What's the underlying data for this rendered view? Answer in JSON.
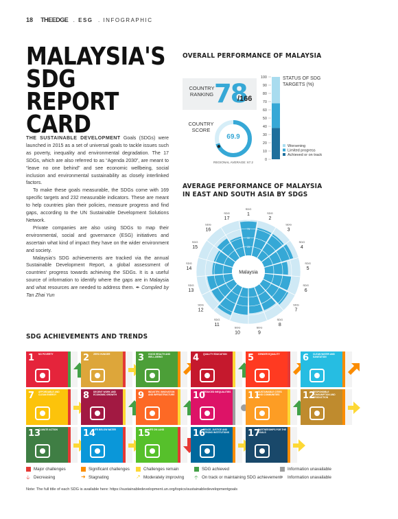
{
  "header": {
    "page_num": "18",
    "brand": "THEEDGE",
    "sep1": ".",
    "section": "ESG",
    "sep2": ".",
    "kind": "INFOGRAPHIC"
  },
  "title": "MALAYSIA'S SDG REPORT CARD",
  "body": {
    "lead": "THE SUSTAINABLE DEVELOPMENT",
    "p1_rest": " Goals (SDGs) were launched in 2015 as a set of universal goals to tackle issues such as poverty, inequality and environmental degradation. The 17 SDGs, which are also referred to as “Agenda 2030”, are meant to “leave no one behind” and see economic wellbeing, social inclusion and environmental sustainability as closely interlinked factors.",
    "p2": "To make these goals measurable, the SDGs come with 169 specific targets and 232 measurable indicators. These are meant to help countries plan their policies, measure progress and find gaps, according to the UN Sustainable Development Solutions Network.",
    "p3": "Private companies are also using SDGs to map their environmental, social and governance (ESG) initiatives and ascertain what kind of impact they have on the wider environment and society.",
    "p4": "Malaysia’s SDG achievements are tracked via the annual Sustainable Development Report, a global assessment of countries’ progress towards achieving the SDGs. It is a useful source of information to identify where the gaps are in Malaysia and what resources are needed to address them.",
    "credit": "Compiled by Tan Zhai Yun"
  },
  "overall": {
    "heading": "OVERALL PERFORMANCE OF MALAYSIA",
    "ranking_label": "COUNTRY RANKING",
    "ranking": "78",
    "ranking_total": "/166",
    "score_label": "COUNTRY SCORE",
    "score": "69.9",
    "score_value": 69.9,
    "regional_avg": "REGIONAL AVERAGE: 67.2"
  },
  "chart_data": [
    {
      "type": "bar",
      "title": "STATUS OF SDG TARGETS (%)",
      "ylim": [
        0,
        100
      ],
      "yticks": [
        "100",
        "90",
        "80",
        "70",
        "60",
        "50",
        "40",
        "30",
        "20",
        "10",
        "0"
      ],
      "stacked": true,
      "series": [
        {
          "name": "Achieved or on track",
          "value": 38,
          "color": "#1e6f9c"
        },
        {
          "name": "Limited progress",
          "value": 30,
          "color": "#36a8d6"
        },
        {
          "name": "Worsening",
          "value": 32,
          "color": "#a9dcef"
        }
      ]
    },
    {
      "type": "bar",
      "polar": true,
      "title": "AVERAGE PERFORMANCE OF MALAYSIA IN EAST AND SOUTH ASIA BY SDGS",
      "center_label": "Malaysia",
      "rlim": [
        0,
        100
      ],
      "rticks": [
        "25",
        "50",
        "75",
        "100"
      ],
      "categories": [
        "SDG 1",
        "SDG 2",
        "SDG 3",
        "SDG 4",
        "SDG 5",
        "SDG 6",
        "SDG 7",
        "SDG 8",
        "SDG 9",
        "SDG 10",
        "SDG 11",
        "SDG 12",
        "SDG 13",
        "SDG 14",
        "SDG 15",
        "SDG 16",
        "SDG 17"
      ],
      "category_nums": [
        "1",
        "2",
        "3",
        "4",
        "5",
        "6",
        "7",
        "8",
        "9",
        "10",
        "11",
        "12",
        "13",
        "14",
        "15",
        "16",
        "17"
      ],
      "values": [
        95,
        80,
        80,
        85,
        65,
        75,
        80,
        70,
        70,
        75,
        85,
        70,
        70,
        55,
        55,
        65,
        55
      ]
    }
  ],
  "radar_heading": "AVERAGE PERFORMANCE OF MALAYSIA IN EAST AND SOUTH ASIA BY SDGS",
  "achievements": {
    "heading": "SDG ACHIEVEMENTS AND TRENDS",
    "tiles": [
      {
        "num": "1",
        "label": "NO POVERTY",
        "color": "#e5243b",
        "status": "#43a047",
        "trend": "up-green"
      },
      {
        "num": "2",
        "label": "ZERO HUNGER",
        "color": "#dda63a",
        "status": "#e53935",
        "trend": "right-yellow"
      },
      {
        "num": "3",
        "label": "GOOD HEALTH AND WELL-BEING",
        "color": "#4c9f38",
        "status": "#fb8c00",
        "trend": "diag-orange"
      },
      {
        "num": "4",
        "label": "QUALITY EDUCATION",
        "color": "#c5192d",
        "status": "#fdd835",
        "trend": "up-green"
      },
      {
        "num": "5",
        "label": "GENDER EQUALITY",
        "color": "#ff3a21",
        "status": "#e53935",
        "trend": "diag-orange"
      },
      {
        "num": "6",
        "label": "CLEAN WATER AND SANITATION",
        "color": "#26bde2",
        "status": "#fb8c00",
        "trend": "diag-orange"
      },
      {
        "num": "7",
        "label": "AFFORDABLE AND CLEAN ENERGY",
        "color": "#fcc30b",
        "status": "#e53935",
        "trend": "right-yellow"
      },
      {
        "num": "8",
        "label": "DECENT WORK AND ECONOMIC GROWTH",
        "color": "#a21942",
        "status": "#fdd835",
        "trend": "up-green"
      },
      {
        "num": "9",
        "label": "INDUSTRY, INNOVATION AND INFRASTRUCTURE",
        "color": "#fd6925",
        "status": "#fdd835",
        "trend": "up-green"
      },
      {
        "num": "10",
        "label": "REDUCED INEQUALITIES",
        "color": "#dd1367",
        "status": "#9e9e9e",
        "trend": "dot-grey"
      },
      {
        "num": "11",
        "label": "SUSTAINABLE CITIES AND COMMUNITIES",
        "color": "#fd9d24",
        "status": "#fdd835",
        "trend": "up-green"
      },
      {
        "num": "12",
        "label": "RESPONSIBLE CONSUMPTION AND PRODUCTION",
        "color": "#bf8b2e",
        "status": "#fb8c00",
        "trend": "right-yellow"
      },
      {
        "num": "13",
        "label": "CLIMATE ACTION",
        "color": "#3f7e44",
        "status": "#e53935",
        "trend": "right-yellow"
      },
      {
        "num": "14",
        "label": "LIFE BELOW WATER",
        "color": "#0a97d9",
        "status": "#e53935",
        "trend": "right-yellow"
      },
      {
        "num": "15",
        "label": "LIFE ON LAND",
        "color": "#56c02b",
        "status": "#e53935",
        "trend": "down-red"
      },
      {
        "num": "16",
        "label": "PEACE, JUSTICE AND STRONG INSTITUTIONS",
        "color": "#00689d",
        "status": "#fb8c00",
        "trend": "right-yellow"
      },
      {
        "num": "17",
        "label": "PARTNERSHIPS FOR THE GOALS",
        "color": "#19486a",
        "status": "#fb8c00",
        "trend": "right-yellow"
      }
    ],
    "legend": [
      {
        "label": "Major challenges",
        "color": "#e53935",
        "shape": "square"
      },
      {
        "label": "Significant challenges",
        "color": "#fb8c00",
        "shape": "square"
      },
      {
        "label": "Challenges remain",
        "color": "#fdd835",
        "shape": "square"
      },
      {
        "label": "SDG achieved",
        "color": "#43a047",
        "shape": "square"
      },
      {
        "label": "Information unavailable",
        "color": "#9e9e9e",
        "shape": "square"
      },
      {
        "label": "Decreasing",
        "color": "#e53935",
        "shape": "down"
      },
      {
        "label": "Stagnating",
        "color": "#fb8c00",
        "shape": "right"
      },
      {
        "label": "Moderately improving",
        "color": "#fdd835",
        "shape": "diag"
      },
      {
        "label": "On track or maintaining SDG achievement",
        "color": "#43a047",
        "shape": "up"
      },
      {
        "label": "Information unavailable",
        "color": "#9e9e9e",
        "shape": "dot"
      }
    ],
    "note": "Note: The full title of each SDG is available here: https://sustainabledevelopment.un.org/topics/sustainabledevelopmentgoals"
  }
}
